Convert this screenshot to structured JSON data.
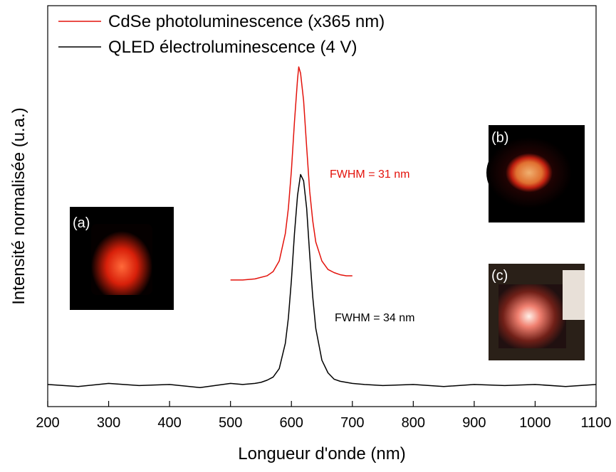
{
  "chart_data": {
    "type": "line",
    "xlabel": "Longueur d'onde (nm)",
    "ylabel": "Intensité normalisée (u.a.)",
    "xlim": [
      200,
      1100
    ],
    "xticks": [
      200,
      300,
      400,
      500,
      600,
      700,
      800,
      900,
      1000,
      1100
    ],
    "ylim": [
      -0.1,
      1.8
    ],
    "legend": "upper-left",
    "series": [
      {
        "name": "CdSe photoluminescence (x365 nm)",
        "color": "#e3120b",
        "x": [
          500,
          520,
          540,
          560,
          570,
          580,
          590,
          595,
          600,
          605,
          610,
          612,
          615,
          620,
          625,
          630,
          635,
          640,
          650,
          660,
          670,
          680,
          690,
          700
        ],
        "values": [
          0.5,
          0.5,
          0.505,
          0.52,
          0.54,
          0.59,
          0.72,
          0.84,
          1.02,
          1.25,
          1.45,
          1.51,
          1.48,
          1.35,
          1.13,
          0.92,
          0.78,
          0.68,
          0.59,
          0.55,
          0.535,
          0.525,
          0.52,
          0.52
        ]
      },
      {
        "name": "QLED électroluminescence (4 V)",
        "color": "#000000",
        "x": [
          200,
          250,
          300,
          350,
          400,
          450,
          500,
          520,
          540,
          550,
          560,
          570,
          580,
          590,
          595,
          600,
          605,
          610,
          615,
          620,
          625,
          630,
          635,
          640,
          650,
          660,
          670,
          680,
          700,
          720,
          750,
          800,
          850,
          900,
          950,
          1000,
          1050,
          1100
        ],
        "values": [
          0.005,
          -0.005,
          0.01,
          0,
          0.005,
          -0.01,
          0.01,
          0.005,
          0.01,
          0.015,
          0.025,
          0.04,
          0.08,
          0.2,
          0.32,
          0.5,
          0.72,
          0.9,
          1.0,
          0.97,
          0.84,
          0.62,
          0.42,
          0.27,
          0.12,
          0.06,
          0.03,
          0.02,
          0.01,
          0.005,
          0,
          0.005,
          -0.005,
          0.005,
          0,
          0.005,
          -0.005,
          0.005
        ]
      }
    ],
    "annotations": [
      "FWHM = 31 nm",
      "FWHM = 34 nm"
    ],
    "inset_labels": [
      "(a)",
      "(b)",
      "(c)"
    ]
  }
}
